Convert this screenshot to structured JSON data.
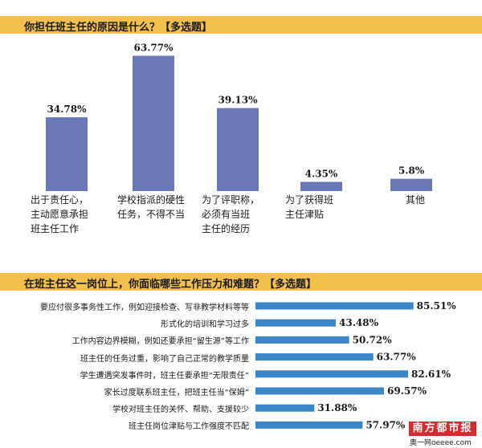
{
  "chart_data": [
    {
      "type": "bar",
      "title": "你担任班主任的原因是什么？【多选题】",
      "categories": [
        [
          "出于责任心，",
          "主动愿意承担",
          "班主任工作"
        ],
        [
          "学校指派的硬性",
          "任务，不得不当"
        ],
        [
          "为了评职称，",
          "必须有当班",
          "主任的经历"
        ],
        [
          "为了获得班",
          "主任津贴"
        ],
        [
          "其他"
        ]
      ],
      "values": [
        34.78,
        63.77,
        39.13,
        4.35,
        5.8
      ],
      "value_labels": [
        "34.78%",
        "63.77%",
        "39.13%",
        "4.35%",
        "5.8%"
      ],
      "ylim": [
        0,
        70
      ],
      "grid": false,
      "color": "#6b78b8"
    },
    {
      "type": "bar",
      "orientation": "horizontal",
      "title": "在班主任这一岗位上，你面临哪些工作压力和难题？【多选题】",
      "categories": [
        "要应付很多事务性工作，例如迎接检查、写非教学材料等等",
        "形式化的培训和学习过多",
        "工作内容边界模糊，例如还要承担“留生源”等工作",
        "班主任的任务过重，影响了自己正常的教学质量",
        "学生遭遇突发事件时，班主任要承担“无限责任”",
        "家长过度联系班主任，把班主任当“保姆”",
        "学校对班主任的关怀、帮助、支援较少",
        "班主任岗位津贴与工作强度不匹配"
      ],
      "values": [
        85.51,
        43.48,
        50.72,
        63.77,
        82.61,
        69.57,
        31.88,
        57.97
      ],
      "value_labels": [
        "85.51%",
        "43.48%",
        "50.72%",
        "63.77%",
        "82.61%",
        "69.57%",
        "31.88%",
        "57.97%"
      ],
      "xlim": [
        0,
        100
      ],
      "grid": false,
      "color": "#3b86c6"
    }
  ],
  "branding": {
    "logo_text": "南方都市报",
    "logo_sub": "奥一网oeeee.com",
    "logo_color": "#d8292f"
  },
  "colors": {
    "header_bg": "#f2c14b"
  }
}
